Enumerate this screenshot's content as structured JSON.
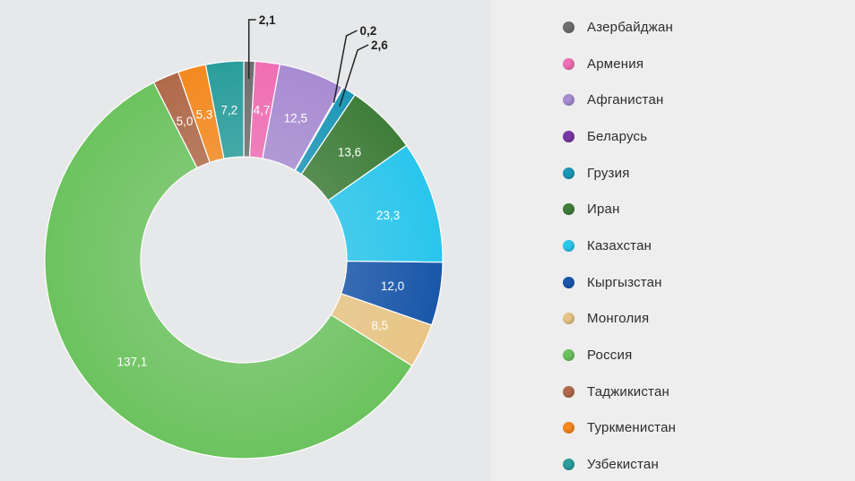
{
  "chart_data": {
    "type": "donut",
    "title": "",
    "start_angle_deg": 0,
    "direction": "clockwise",
    "legend_position": "right",
    "slices": [
      {
        "name": "Азербайджан",
        "value": 2.1,
        "label": "2,1",
        "color": "#6e6e6e",
        "label_style": "outside"
      },
      {
        "name": "Армения",
        "value": 4.7,
        "label": "4,7",
        "color": "#f06eb4",
        "label_style": "inside"
      },
      {
        "name": "Афганистан",
        "value": 12.5,
        "label": "12,5",
        "color": "#a88cd2",
        "label_style": "inside"
      },
      {
        "name": "Беларусь",
        "value": 0.2,
        "label": "0,2",
        "color": "#7a37a6",
        "label_style": "outside"
      },
      {
        "name": "Грузия",
        "value": 2.6,
        "label": "2,6",
        "color": "#1d97b8",
        "label_style": "outside"
      },
      {
        "name": "Иран",
        "value": 13.6,
        "label": "13,6",
        "color": "#3f7e3a",
        "label_style": "inside"
      },
      {
        "name": "Казахстан",
        "value": 23.3,
        "label": "23,3",
        "color": "#2ac6ec",
        "label_style": "inside"
      },
      {
        "name": "Кыргызстан",
        "value": 12.0,
        "label": "12,0",
        "color": "#1a57aa",
        "label_style": "inside"
      },
      {
        "name": "Монголия",
        "value": 8.5,
        "label": "8,5",
        "color": "#e8c585",
        "label_style": "inside"
      },
      {
        "name": "Россия",
        "value": 137.1,
        "label": "137,1",
        "color": "#6cc35e",
        "label_style": "inside"
      },
      {
        "name": "Таджикистан",
        "value": 5.0,
        "label": "5,0",
        "color": "#b06a4a",
        "label_style": "inside"
      },
      {
        "name": "Туркменистан",
        "value": 5.3,
        "label": "5,3",
        "color": "#f5891f",
        "label_style": "inside"
      },
      {
        "name": "Узбекистан",
        "value": 7.2,
        "label": "7,2",
        "color": "#2a9e9c",
        "label_style": "inside"
      }
    ]
  }
}
